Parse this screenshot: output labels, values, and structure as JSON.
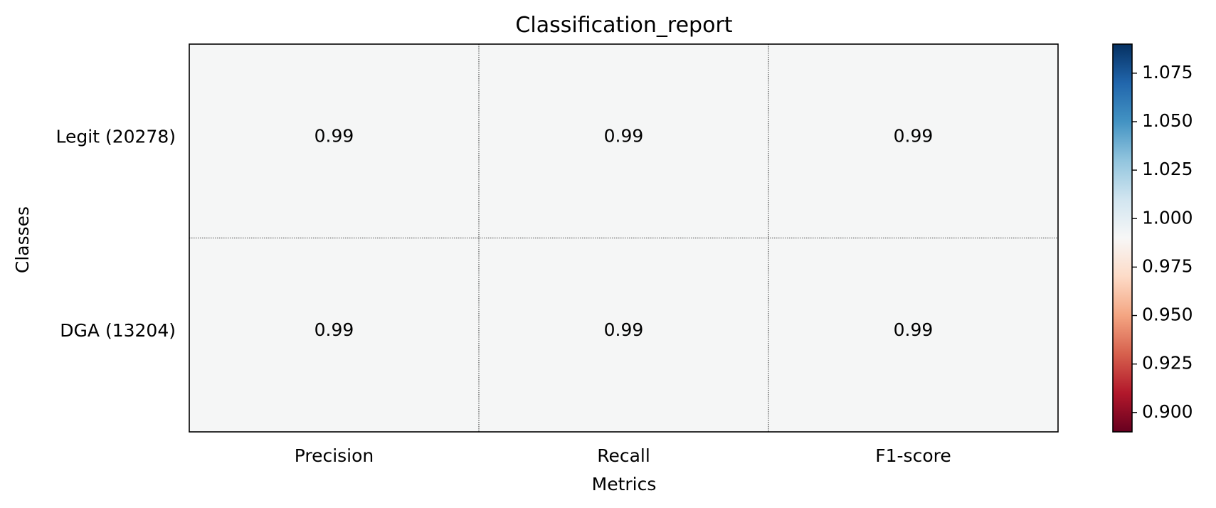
{
  "chart_data": {
    "type": "heatmap",
    "title": "Classification_report",
    "xlabel": "Metrics",
    "ylabel": "Classes",
    "x_categories": [
      "Precision",
      "Recall",
      "F1-score"
    ],
    "y_categories": [
      "Legit (20278)",
      "DGA (13204)"
    ],
    "values": [
      [
        0.99,
        0.99,
        0.99
      ],
      [
        0.99,
        0.99,
        0.99
      ]
    ],
    "cell_labels": [
      [
        "0.99",
        "0.99",
        "0.99"
      ],
      [
        "0.99",
        "0.99",
        "0.99"
      ]
    ],
    "colormap": "RdBu",
    "colorbar": {
      "range": [
        0.89,
        1.09
      ],
      "ticks": [
        0.9,
        0.925,
        0.95,
        0.975,
        1.0,
        1.025,
        1.05,
        1.075
      ],
      "tick_labels": [
        "0.900",
        "0.925",
        "0.950",
        "0.975",
        "1.000",
        "1.025",
        "1.050",
        "1.075"
      ]
    },
    "cell_color": "#f5f6f6",
    "grid": true
  }
}
